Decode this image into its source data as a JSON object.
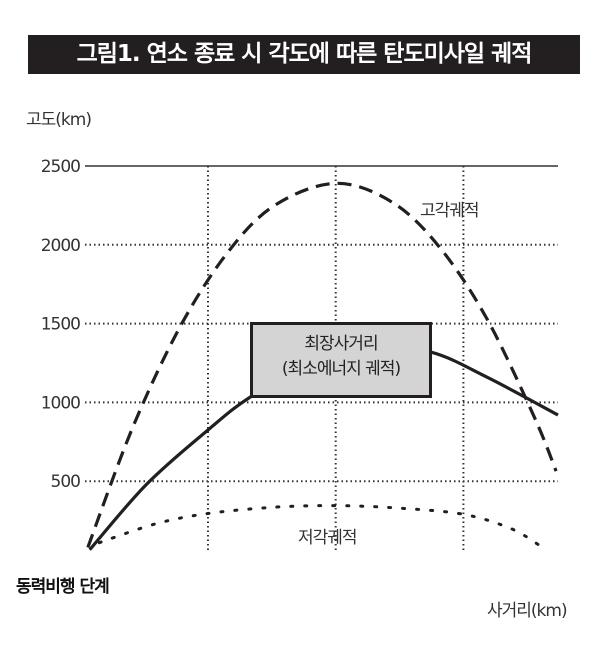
{
  "title": "그림1. 연소 종료 시 각도에 따른 탄도미사일 궤적",
  "labels": {
    "powered_flight": "동력비행 단계",
    "high_angle": "고각궤적",
    "low_angle": "저각궤적",
    "box_line1": "최장사거리",
    "box_line2": "(최소에너지 궤적)"
  },
  "chart_data": {
    "type": "line",
    "title": "그림1. 연소 종료 시 각도에 따른 탄도미사일 궤적",
    "xlabel": "사거리(km)",
    "ylabel": "고도(km)",
    "ylim": [
      0,
      2500
    ],
    "xlim": [
      0,
      100
    ],
    "yticks": [
      500,
      1000,
      1500,
      2000,
      2500
    ],
    "ytick_labels": [
      "500",
      "1000",
      "1500",
      "2000",
      "2500"
    ],
    "xgrid": [
      26,
      53,
      80
    ],
    "grid": true,
    "series": [
      {
        "name": "고각궤적",
        "style": "dashed",
        "points": [
          [
            0.6,
            80
          ],
          [
            10,
            835
          ],
          [
            20,
            1474
          ],
          [
            30,
            1945
          ],
          [
            40,
            2248
          ],
          [
            53,
            2390
          ],
          [
            65,
            2269
          ],
          [
            75,
            1983
          ],
          [
            85,
            1529
          ],
          [
            95,
            906
          ],
          [
            99.6,
            564
          ]
        ]
      },
      {
        "name": "최장사거리 (최소에너지 궤적)",
        "style": "solid",
        "points": [
          [
            1,
            65
          ],
          [
            13,
            480
          ],
          [
            26,
            825
          ],
          [
            35,
            1035
          ],
          [
            48,
            1250
          ],
          [
            60,
            1355
          ],
          [
            73,
            1320
          ],
          [
            85,
            1160
          ],
          [
            100,
            920
          ]
        ]
      },
      {
        "name": "저각궤적",
        "style": "dotted",
        "points": [
          [
            3,
            110
          ],
          [
            15,
            230
          ],
          [
            26,
            295
          ],
          [
            40,
            335
          ],
          [
            53,
            345
          ],
          [
            66,
            330
          ],
          [
            80,
            290
          ],
          [
            90,
            200
          ],
          [
            96,
            95
          ]
        ]
      }
    ]
  }
}
